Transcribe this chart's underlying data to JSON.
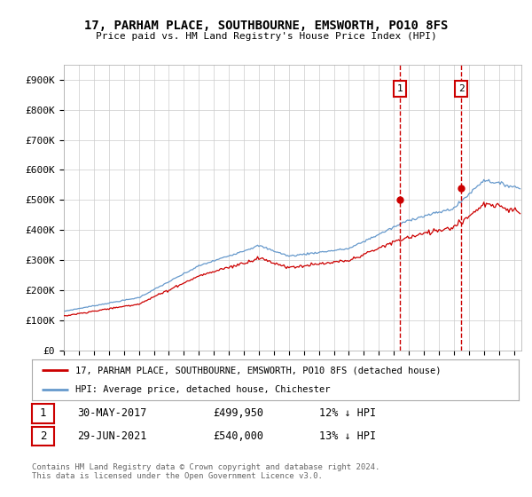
{
  "title": "17, PARHAM PLACE, SOUTHBOURNE, EMSWORTH, PO10 8FS",
  "subtitle": "Price paid vs. HM Land Registry's House Price Index (HPI)",
  "ylabel_ticks": [
    "£0",
    "£100K",
    "£200K",
    "£300K",
    "£400K",
    "£500K",
    "£600K",
    "£700K",
    "£800K",
    "£900K"
  ],
  "ytick_values": [
    0,
    100000,
    200000,
    300000,
    400000,
    500000,
    600000,
    700000,
    800000,
    900000
  ],
  "ylim": [
    0,
    950000
  ],
  "xlim_start": 1995.0,
  "xlim_end": 2025.5,
  "red_color": "#cc0000",
  "blue_color": "#6699cc",
  "sale1_x": 2017.41,
  "sale1_y": 499950,
  "sale2_x": 2021.49,
  "sale2_y": 540000,
  "sale1_label": "30-MAY-2017",
  "sale1_price": "£499,950",
  "sale1_hpi": "12% ↓ HPI",
  "sale2_label": "29-JUN-2021",
  "sale2_price": "£540,000",
  "sale2_hpi": "13% ↓ HPI",
  "legend_line1": "17, PARHAM PLACE, SOUTHBOURNE, EMSWORTH, PO10 8FS (detached house)",
  "legend_line2": "HPI: Average price, detached house, Chichester",
  "footer": "Contains HM Land Registry data © Crown copyright and database right 2024.\nThis data is licensed under the Open Government Licence v3.0.",
  "background_color": "#ffffff",
  "grid_color": "#cccccc"
}
